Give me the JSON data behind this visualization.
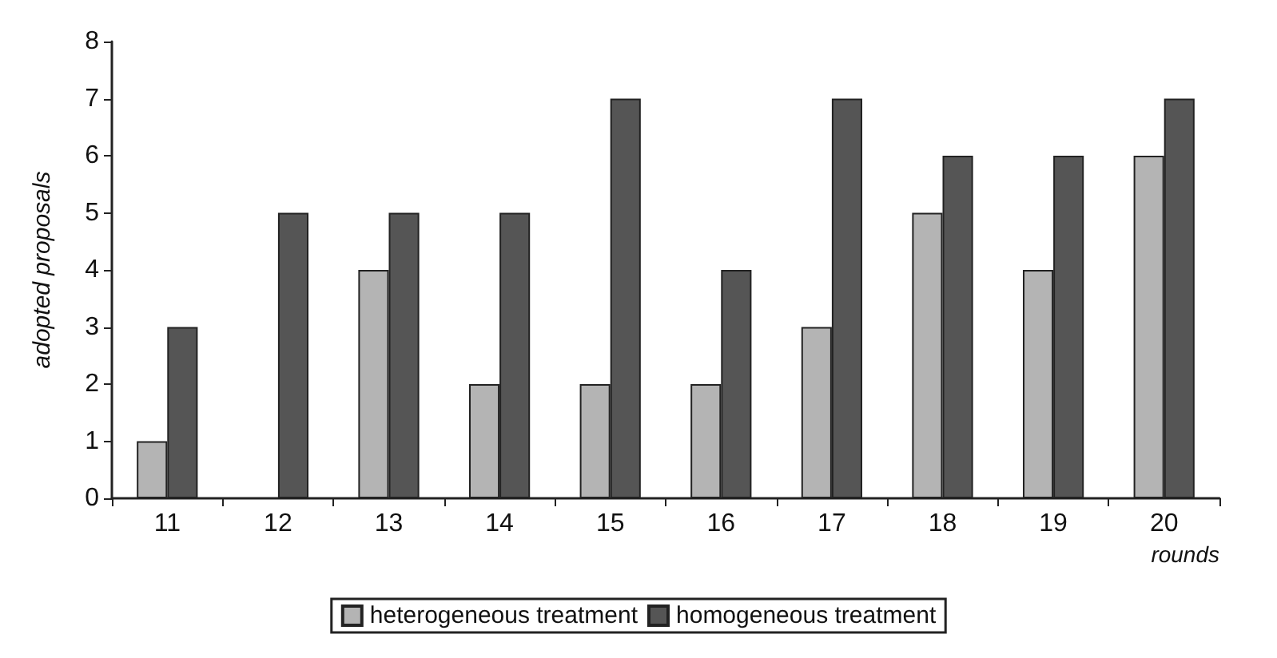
{
  "chart_data": {
    "type": "bar",
    "xlabel": "rounds",
    "ylabel": "adopted proposals",
    "categories": [
      "11",
      "12",
      "13",
      "14",
      "15",
      "16",
      "17",
      "18",
      "19",
      "20"
    ],
    "series": [
      {
        "name": "heterogeneous treatment",
        "color": "#b4b4b4",
        "values": [
          1,
          null,
          4,
          2,
          2,
          2,
          3,
          5,
          4,
          6
        ]
      },
      {
        "name": "homogeneous treatment",
        "color": "#555555",
        "values": [
          3,
          5,
          5,
          5,
          7,
          4,
          7,
          6,
          6,
          7
        ]
      }
    ],
    "ylim": [
      0,
      8
    ],
    "yticks": [
      0,
      1,
      2,
      3,
      4,
      5,
      6,
      7,
      8
    ],
    "grid": false,
    "legend": "bottom"
  }
}
